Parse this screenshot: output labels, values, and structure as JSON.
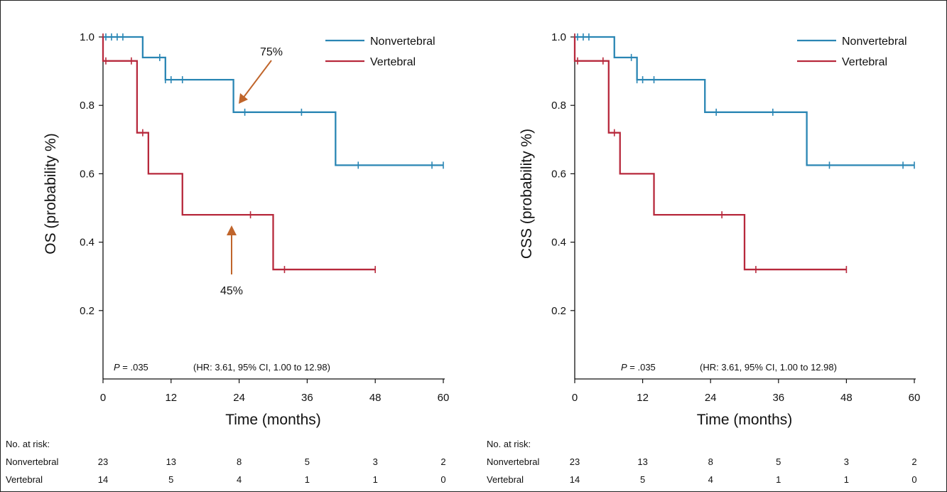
{
  "chart_data": [
    {
      "type": "line",
      "subtype": "kaplan-meier",
      "ylabel": "OS (probability %)",
      "xlabel": "Time (months)",
      "xlim": [
        0,
        60
      ],
      "ylim": [
        0.0,
        1.0
      ],
      "xticks": [
        "0",
        "12",
        "24",
        "36",
        "48",
        "60"
      ],
      "yticks": [
        "0.2",
        "0.4",
        "0.6",
        "0.8",
        "1.0"
      ],
      "legend_position": "top-right",
      "p_italic": "P",
      "p_rest": " = .035",
      "hr_text": "(HR: 3.61, 95% CI, 1.00 to 12.98)",
      "annotations": [
        {
          "text": "75%",
          "point_x": 24,
          "point_y": 0.8,
          "color": "#c0652b"
        },
        {
          "text": "45%",
          "point_x": 23,
          "point_y": 0.5,
          "color": "#c0652b"
        }
      ],
      "series": [
        {
          "name": "Nonvertebral",
          "color": "#2a86b4",
          "steps": [
            [
              0,
              1.0
            ],
            [
              7,
              0.94
            ],
            [
              11,
              0.875
            ],
            [
              23,
              0.78
            ],
            [
              41,
              0.625
            ],
            [
              60,
              0.625
            ]
          ],
          "censored": [
            [
              0.5,
              1.0
            ],
            [
              1.5,
              1.0
            ],
            [
              2.5,
              1.0
            ],
            [
              3.5,
              1.0
            ],
            [
              10,
              0.94
            ],
            [
              11,
              0.875
            ],
            [
              12,
              0.875
            ],
            [
              14,
              0.875
            ],
            [
              25,
              0.78
            ],
            [
              35,
              0.78
            ],
            [
              45,
              0.625
            ],
            [
              58,
              0.625
            ],
            [
              60,
              0.625
            ]
          ]
        },
        {
          "name": "Vertebral",
          "color": "#b7293c",
          "steps": [
            [
              0,
              0.93
            ],
            [
              6,
              0.72
            ],
            [
              8,
              0.6
            ],
            [
              14,
              0.48
            ],
            [
              30,
              0.32
            ],
            [
              48,
              0.32
            ]
          ],
          "censored": [
            [
              0,
              1.0
            ],
            [
              0.5,
              0.93
            ],
            [
              5,
              0.93
            ],
            [
              7,
              0.72
            ],
            [
              26,
              0.48
            ],
            [
              32,
              0.32
            ],
            [
              48,
              0.32
            ]
          ]
        }
      ],
      "risk_table": {
        "title": "No. at risk:",
        "rows": [
          {
            "label": "Nonvertebral",
            "values": [
              "23",
              "13",
              "8",
              "5",
              "3",
              "2"
            ]
          },
          {
            "label": "Vertebral",
            "values": [
              "14",
              "5",
              "4",
              "1",
              "1",
              "0"
            ]
          }
        ]
      }
    },
    {
      "type": "line",
      "subtype": "kaplan-meier",
      "ylabel": "CSS (probability %)",
      "xlabel": "Time (months)",
      "xlim": [
        0,
        60
      ],
      "ylim": [
        0.0,
        1.0
      ],
      "xticks": [
        "0",
        "12",
        "24",
        "36",
        "48",
        "60"
      ],
      "yticks": [
        "0.2",
        "0.4",
        "0.6",
        "0.8",
        "1.0"
      ],
      "legend_position": "top-right",
      "p_italic": "P",
      "p_rest": " = .035",
      "hr_text": "(HR: 3.61, 95% CI, 1.00 to 12.98)",
      "annotations": [],
      "series": [
        {
          "name": "Nonvertebral",
          "color": "#2a86b4",
          "steps": [
            [
              0,
              1.0
            ],
            [
              7,
              0.94
            ],
            [
              11,
              0.875
            ],
            [
              23,
              0.78
            ],
            [
              41,
              0.625
            ],
            [
              60,
              0.625
            ]
          ],
          "censored": [
            [
              0.5,
              1.0
            ],
            [
              1.5,
              1.0
            ],
            [
              2.5,
              1.0
            ],
            [
              10,
              0.94
            ],
            [
              11,
              0.875
            ],
            [
              12,
              0.875
            ],
            [
              14,
              0.875
            ],
            [
              25,
              0.78
            ],
            [
              35,
              0.78
            ],
            [
              45,
              0.625
            ],
            [
              58,
              0.625
            ],
            [
              60,
              0.625
            ]
          ]
        },
        {
          "name": "Vertebral",
          "color": "#b7293c",
          "steps": [
            [
              0,
              0.93
            ],
            [
              6,
              0.72
            ],
            [
              8,
              0.6
            ],
            [
              14,
              0.48
            ],
            [
              30,
              0.32
            ],
            [
              48,
              0.32
            ]
          ],
          "censored": [
            [
              0,
              1.0
            ],
            [
              0.5,
              0.93
            ],
            [
              5,
              0.93
            ],
            [
              7,
              0.72
            ],
            [
              26,
              0.48
            ],
            [
              32,
              0.32
            ],
            [
              48,
              0.32
            ]
          ]
        }
      ],
      "risk_table": {
        "title": "No. at risk:",
        "rows": [
          {
            "label": "Nonvertebral",
            "values": [
              "23",
              "13",
              "8",
              "5",
              "3",
              "2"
            ]
          },
          {
            "label": "Vertebral",
            "values": [
              "14",
              "5",
              "4",
              "1",
              "1",
              "0"
            ]
          }
        ]
      }
    }
  ]
}
